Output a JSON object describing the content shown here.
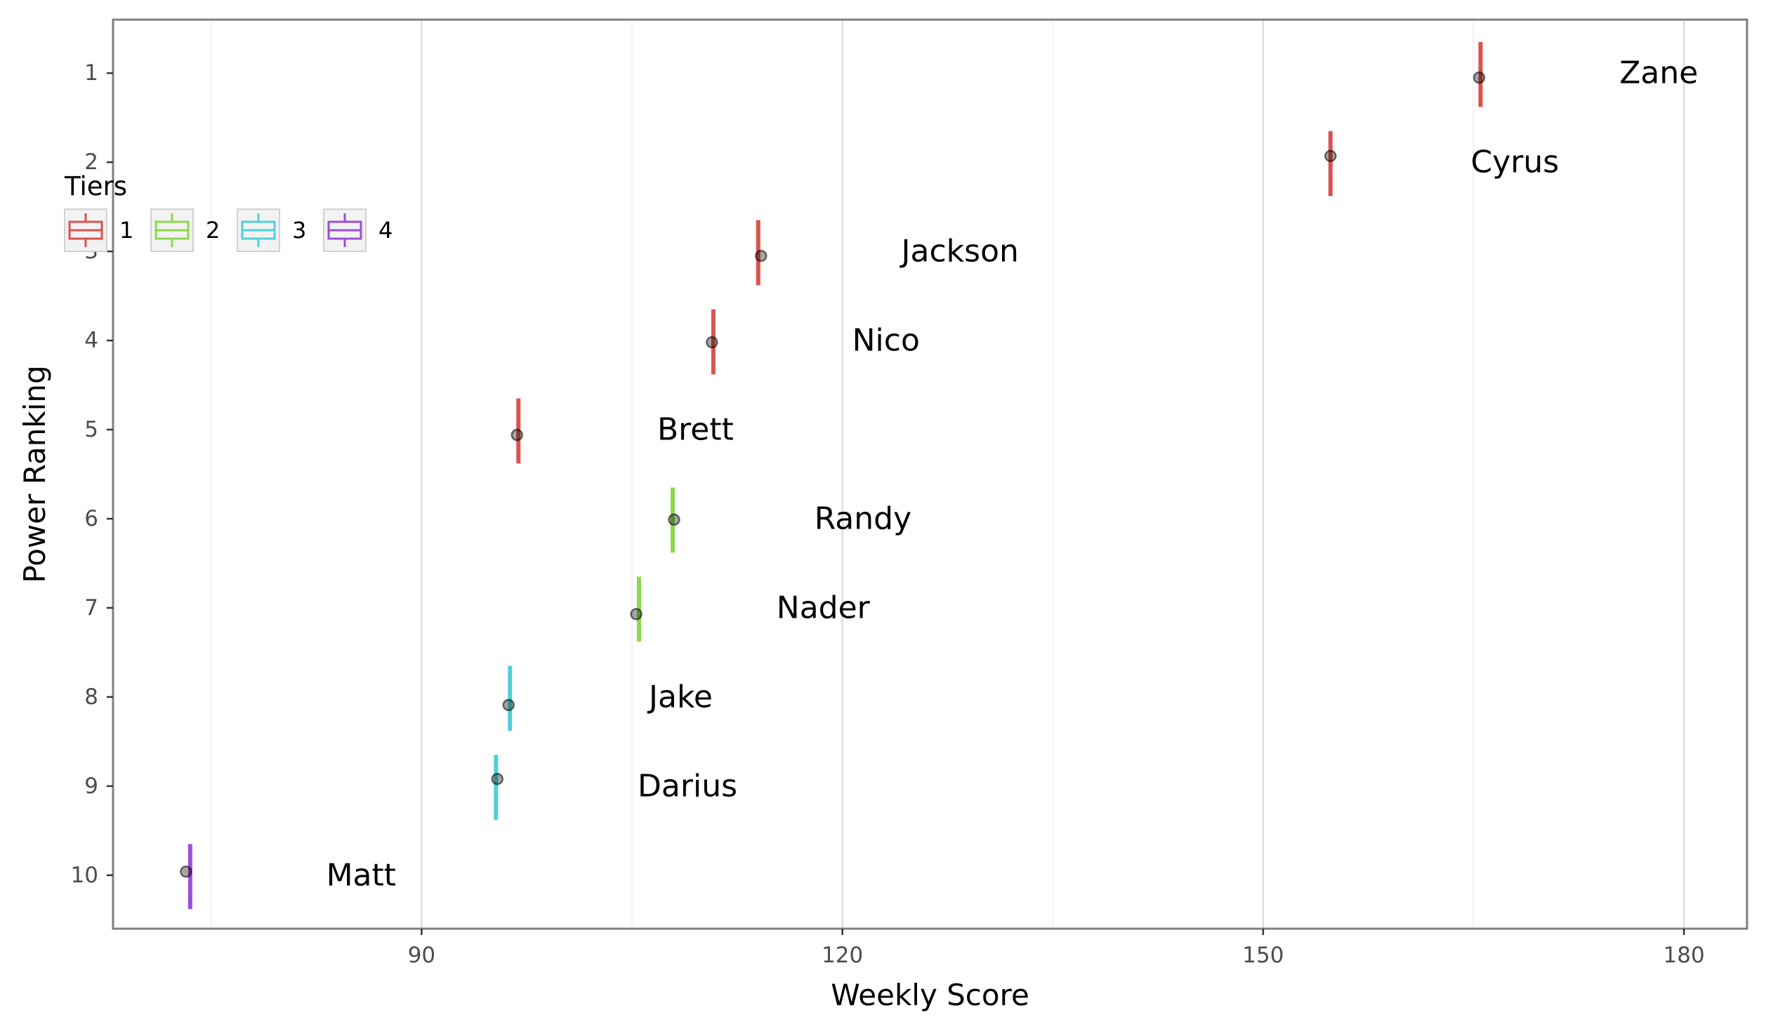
{
  "chart_data": {
    "type": "scatter",
    "title": "",
    "xlabel": "Weekly Score",
    "ylabel": "Power Ranking",
    "xlim": [
      68,
      184.5
    ],
    "ylim": [
      0.4,
      10.6
    ],
    "y_reversed": true,
    "x_ticks": [
      90,
      120,
      150,
      180
    ],
    "x_minor_ticks": [
      75,
      105,
      135,
      165
    ],
    "y_ticks": [
      1,
      2,
      3,
      4,
      5,
      6,
      7,
      8,
      9,
      10
    ],
    "grid": true,
    "legend": {
      "title": "Tiers",
      "placement": "top-left",
      "entries": [
        {
          "label": "1",
          "color": "#d9534f"
        },
        {
          "label": "2",
          "color": "#8bd94f"
        },
        {
          "label": "3",
          "color": "#4fd1d9"
        },
        {
          "label": "4",
          "color": "#9b4fd9"
        }
      ]
    },
    "points": [
      {
        "name": "Zane",
        "rank": 1,
        "x": 165.4,
        "y": 1.05,
        "tier": "1",
        "bar_x": 165.5,
        "bar_low": 0.65,
        "bar_high": 1.38
      },
      {
        "name": "Cyrus",
        "rank": 2,
        "x": 154.8,
        "y": 1.93,
        "tier": "1",
        "bar_x": 154.8,
        "bar_low": 1.65,
        "bar_high": 2.38
      },
      {
        "name": "Jackson",
        "rank": 3,
        "x": 114.2,
        "y": 3.05,
        "tier": "1",
        "bar_x": 114.0,
        "bar_low": 2.65,
        "bar_high": 3.38
      },
      {
        "name": "Nico",
        "rank": 4,
        "x": 110.7,
        "y": 4.02,
        "tier": "1",
        "bar_x": 110.8,
        "bar_low": 3.65,
        "bar_high": 4.38
      },
      {
        "name": "Brett",
        "rank": 5,
        "x": 96.8,
        "y": 5.06,
        "tier": "1",
        "bar_x": 96.9,
        "bar_low": 4.65,
        "bar_high": 5.38
      },
      {
        "name": "Randy",
        "rank": 6,
        "x": 108.0,
        "y": 6.01,
        "tier": "2",
        "bar_x": 107.9,
        "bar_low": 5.65,
        "bar_high": 6.38
      },
      {
        "name": "Nader",
        "rank": 7,
        "x": 105.3,
        "y": 7.07,
        "tier": "2",
        "bar_x": 105.5,
        "bar_low": 6.65,
        "bar_high": 7.38
      },
      {
        "name": "Jake",
        "rank": 8,
        "x": 96.2,
        "y": 8.09,
        "tier": "3",
        "bar_x": 96.3,
        "bar_low": 7.65,
        "bar_high": 8.38
      },
      {
        "name": "Darius",
        "rank": 9,
        "x": 95.4,
        "y": 8.92,
        "tier": "3",
        "bar_x": 95.3,
        "bar_low": 8.65,
        "bar_high": 9.38
      },
      {
        "name": "Matt",
        "rank": 10,
        "x": 73.2,
        "y": 9.96,
        "tier": "4",
        "bar_x": 73.5,
        "bar_low": 9.65,
        "bar_high": 10.38
      }
    ],
    "label_offset_x": 10.0
  }
}
